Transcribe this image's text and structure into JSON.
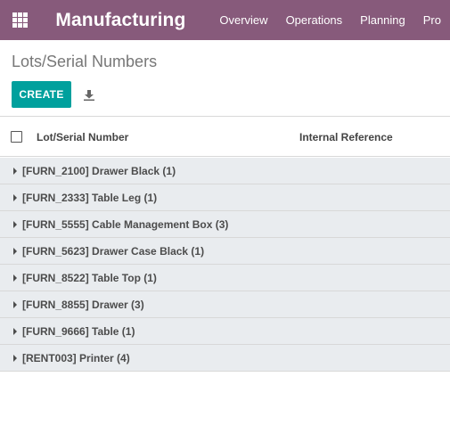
{
  "navbar": {
    "apps_icon": "grid-apps-icon",
    "brand": "Manufacturing",
    "menu": [
      "Overview",
      "Operations",
      "Planning",
      "Pro"
    ]
  },
  "control_panel": {
    "breadcrumb": "Lots/Serial Numbers",
    "create_label": "CREATE",
    "download_icon": "download-icon"
  },
  "list": {
    "columns": {
      "lot": "Lot/Serial Number",
      "ref": "Internal Reference"
    },
    "groups": [
      "[FURN_2100] Drawer Black (1)",
      "[FURN_2333] Table Leg (1)",
      "[FURN_5555] Cable Management Box (3)",
      "[FURN_5623] Drawer Case Black (1)",
      "[FURN_8522] Table Top (1)",
      "[FURN_8855] Drawer (3)",
      "[FURN_9666] Table (1)",
      "[RENT003] Printer (4)"
    ]
  },
  "colors": {
    "navbar": "#875a7b",
    "primary_button": "#00a09d",
    "group_row_bg": "#e9ecef"
  }
}
